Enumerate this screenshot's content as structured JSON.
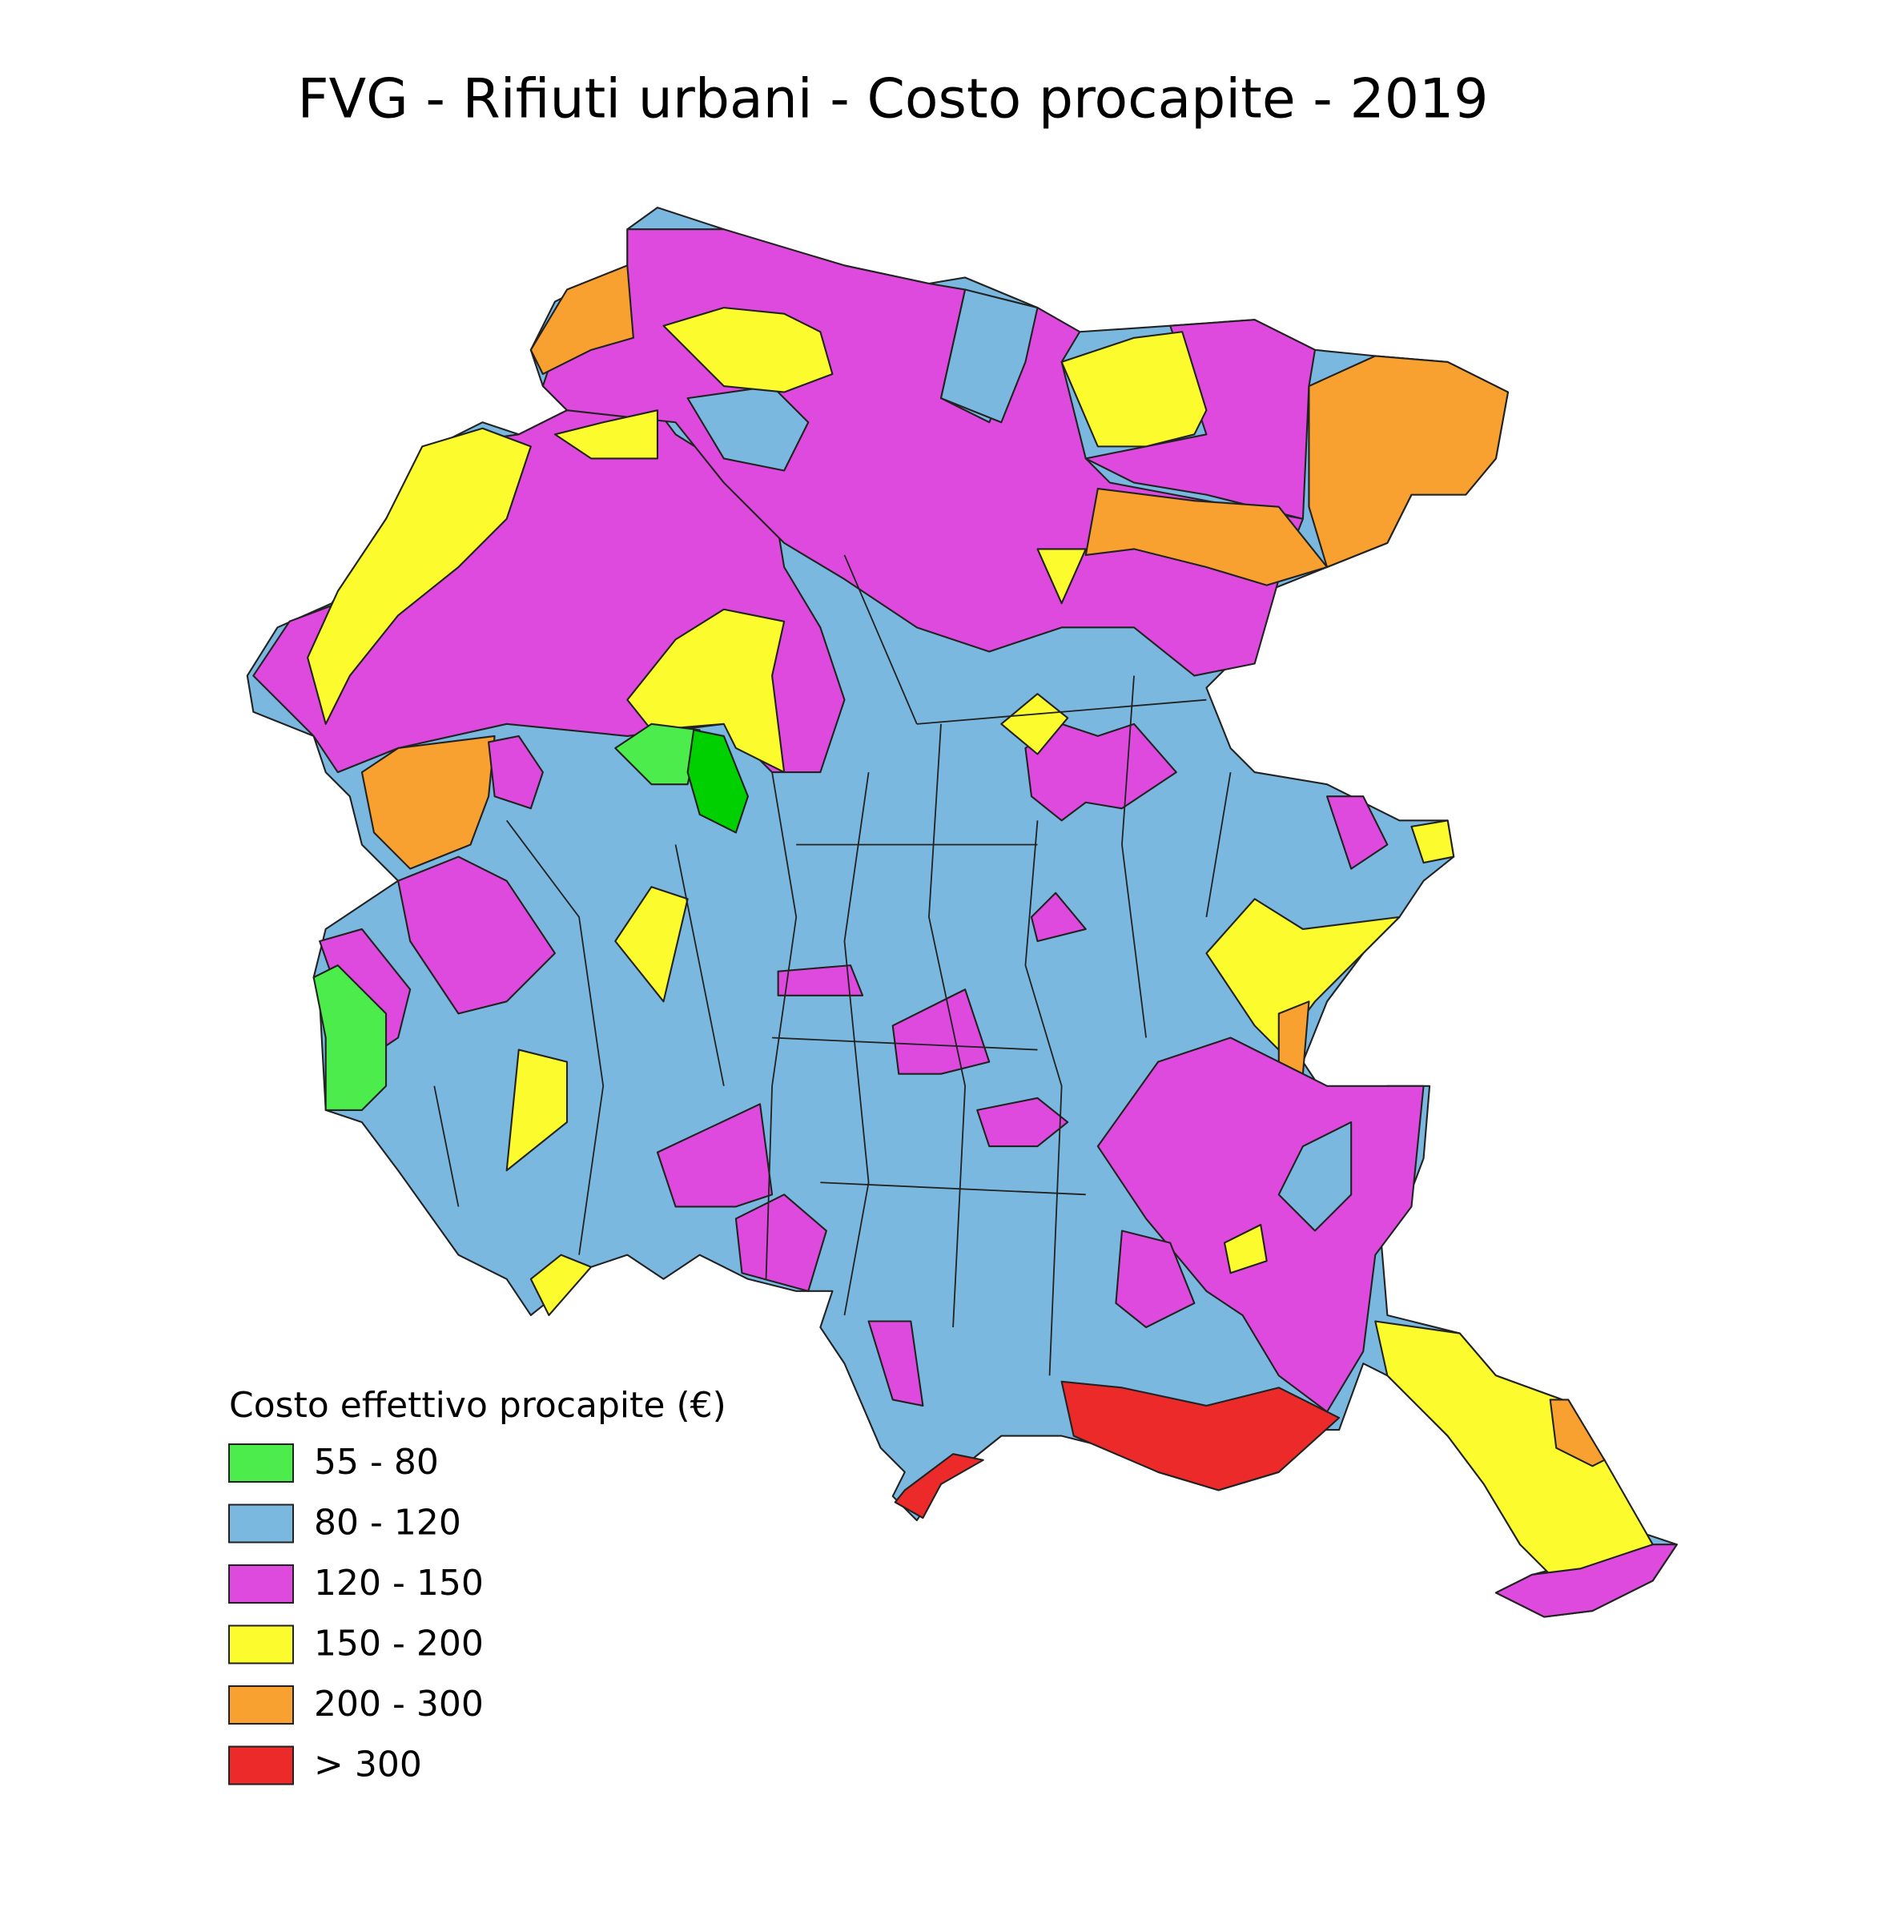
{
  "title": "FVG - Rifiuti urbani - Costo procapite - 2019",
  "legend": {
    "title": "Costo effettivo procapite (€)",
    "items": [
      {
        "label": "55 - 80",
        "color": "#4cec4c"
      },
      {
        "label": "80 - 120",
        "color": "#7ab8e0"
      },
      {
        "label": "120 - 150",
        "color": "#dd4add"
      },
      {
        "label": "150 - 200",
        "color": "#fbfb2e"
      },
      {
        "label": "200 - 300",
        "color": "#f8a030"
      },
      {
        "label": "> 300",
        "color": "#ec2a2a"
      }
    ]
  }
}
